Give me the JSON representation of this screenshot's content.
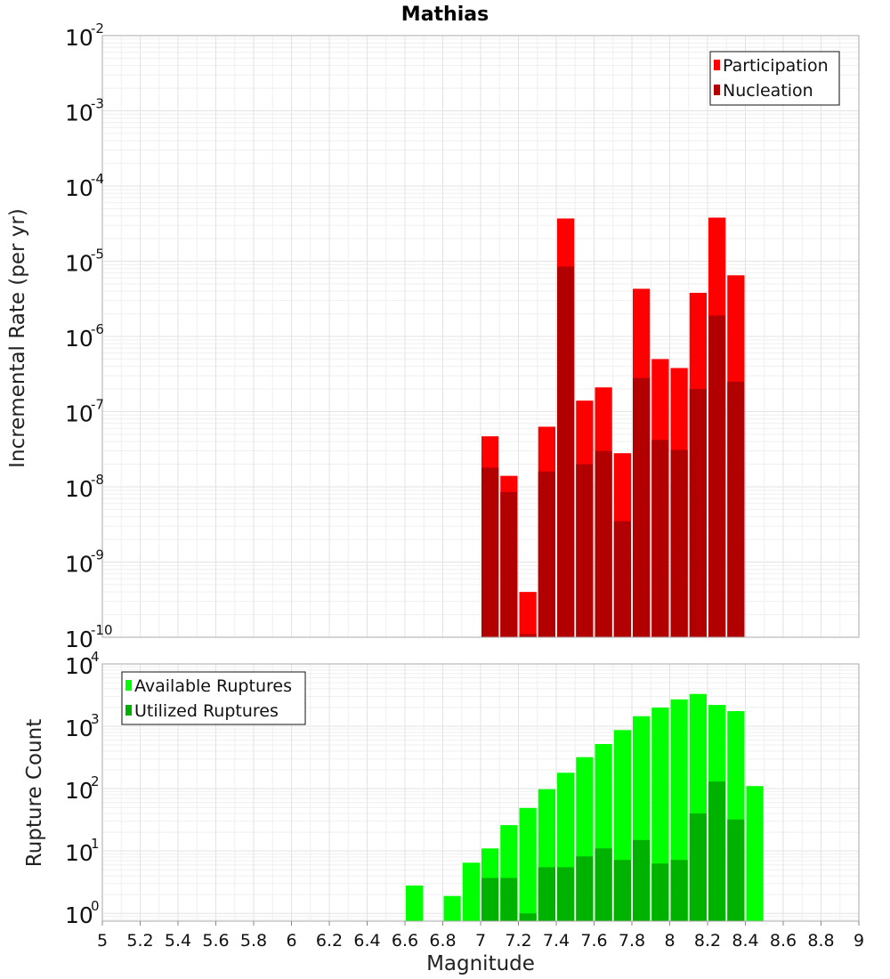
{
  "chart_data": [
    {
      "type": "bar",
      "title": "Mathias",
      "xlabel": "",
      "ylabel": "Incremental Rate (per yr)",
      "yscale": "log",
      "xlim": [
        5,
        9
      ],
      "ylim": [
        1e-10,
        0.01
      ],
      "ytick_exponents": [
        "-10",
        "-9",
        "-8",
        "-7",
        "-6",
        "-5",
        "-4",
        "-3",
        "-2"
      ],
      "grid": true,
      "legend_position": "top-right",
      "x": [
        7.05,
        7.15,
        7.25,
        7.35,
        7.45,
        7.55,
        7.65,
        7.75,
        7.85,
        7.95,
        8.05,
        8.15,
        8.25,
        8.35
      ],
      "series": [
        {
          "name": "Participation",
          "color": "#ff0000",
          "values": [
            4.7e-08,
            1.4e-08,
            4e-10,
            6.3e-08,
            3.7e-05,
            1.4e-07,
            2.1e-07,
            2.8e-08,
            4.3e-06,
            5e-07,
            3.8e-07,
            3.8e-06,
            3.8e-05,
            6.5e-06
          ]
        },
        {
          "name": "Nucleation",
          "color": "#b20000",
          "values": [
            1.8e-08,
            8.5e-09,
            1.1e-10,
            1.6e-08,
            8.5e-06,
            2e-08,
            3e-08,
            3.5e-09,
            2.8e-07,
            4.2e-08,
            3.1e-08,
            2e-07,
            1.9e-06,
            2.5e-07
          ]
        }
      ]
    },
    {
      "type": "bar",
      "title": "",
      "xlabel": "Magnitude",
      "ylabel": "Rupture Count",
      "yscale": "log",
      "xlim": [
        5,
        9
      ],
      "ylim": [
        0.75,
        10000
      ],
      "ytick_exponents": [
        "0",
        "1",
        "2",
        "3",
        "4"
      ],
      "xticks": [
        "5",
        "5.2",
        "5.4",
        "5.6",
        "5.8",
        "6",
        "6.2",
        "6.4",
        "6.6",
        "6.8",
        "7",
        "7.2",
        "7.4",
        "7.6",
        "7.8",
        "8",
        "8.2",
        "8.4",
        "8.6",
        "8.8",
        "9"
      ],
      "grid": true,
      "legend_position": "top-left",
      "x": [
        6.65,
        6.85,
        6.95,
        7.05,
        7.15,
        7.25,
        7.35,
        7.45,
        7.55,
        7.65,
        7.75,
        7.85,
        7.95,
        8.05,
        8.15,
        8.25,
        8.35,
        8.45
      ],
      "series": [
        {
          "name": "Available Ruptures",
          "color": "#00ff00",
          "values": [
            2.8,
            1.9,
            6.5,
            11,
            26,
            49,
            98,
            180,
            320,
            520,
            870,
            1450,
            2000,
            2700,
            3300,
            2200,
            1750,
            110
          ]
        },
        {
          "name": "Utilized Ruptures",
          "color": "#00b200",
          "values": [
            0,
            0,
            0,
            3.7,
            3.7,
            1.0,
            5.5,
            5.5,
            8.2,
            11,
            7.2,
            15,
            6.3,
            7.2,
            40,
            130,
            32,
            0
          ]
        }
      ]
    }
  ]
}
